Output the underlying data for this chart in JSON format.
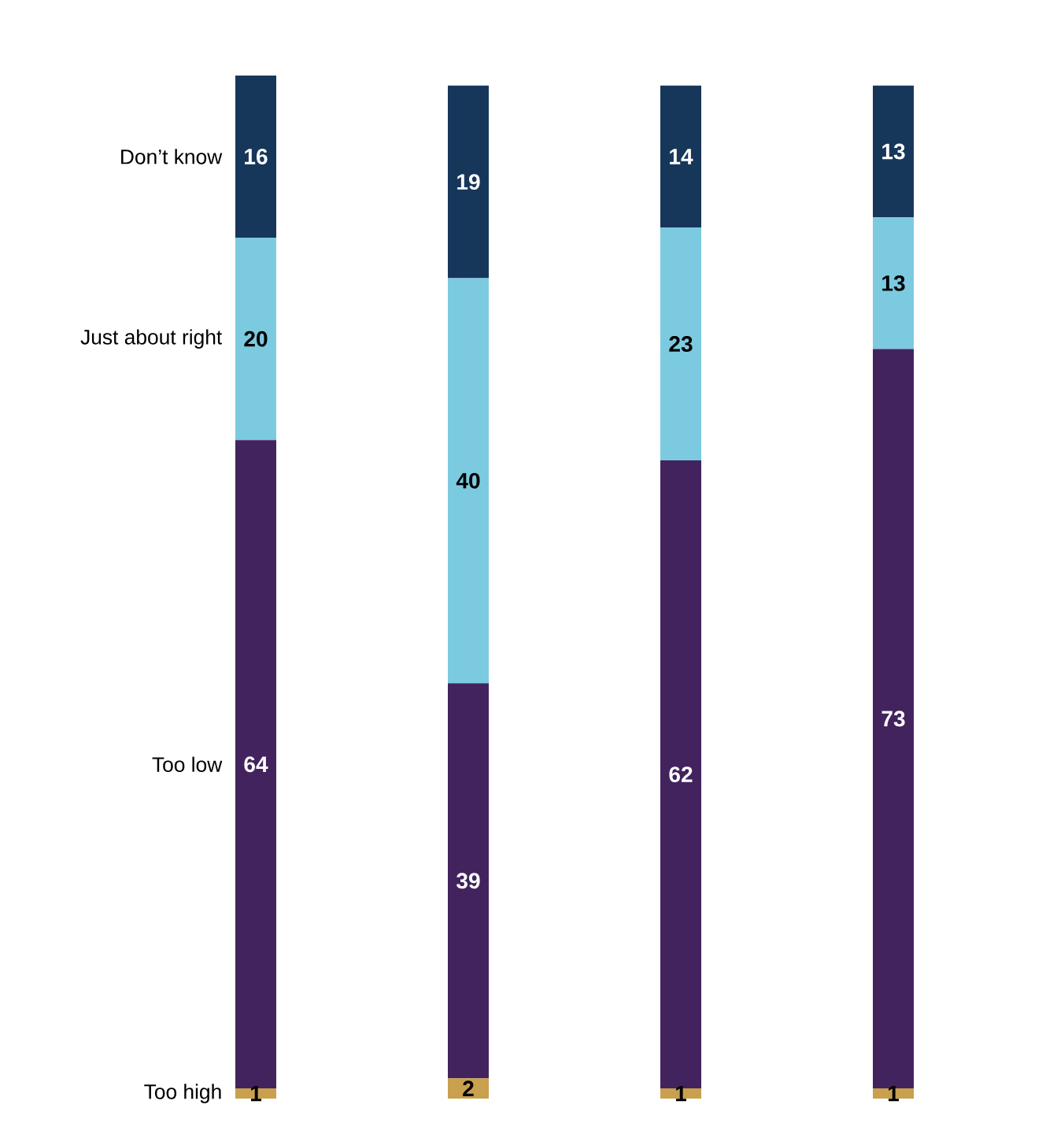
{
  "chart_data": {
    "type": "bar",
    "stacked": true,
    "data_labels": true,
    "categories": [
      null,
      null,
      null,
      null
    ],
    "series": [
      {
        "name": "Too high",
        "color": "#c9a04e",
        "values": [
          1,
          2,
          1,
          1
        ]
      },
      {
        "name": "Too low",
        "color": "#42235e",
        "values": [
          64,
          39,
          62,
          73
        ]
      },
      {
        "name": "Just about right",
        "color": "#7ccae0",
        "values": [
          20,
          40,
          23,
          13
        ]
      },
      {
        "name": "Don’t know",
        "color": "#17375a",
        "values": [
          16,
          19,
          14,
          13
        ]
      }
    ]
  }
}
